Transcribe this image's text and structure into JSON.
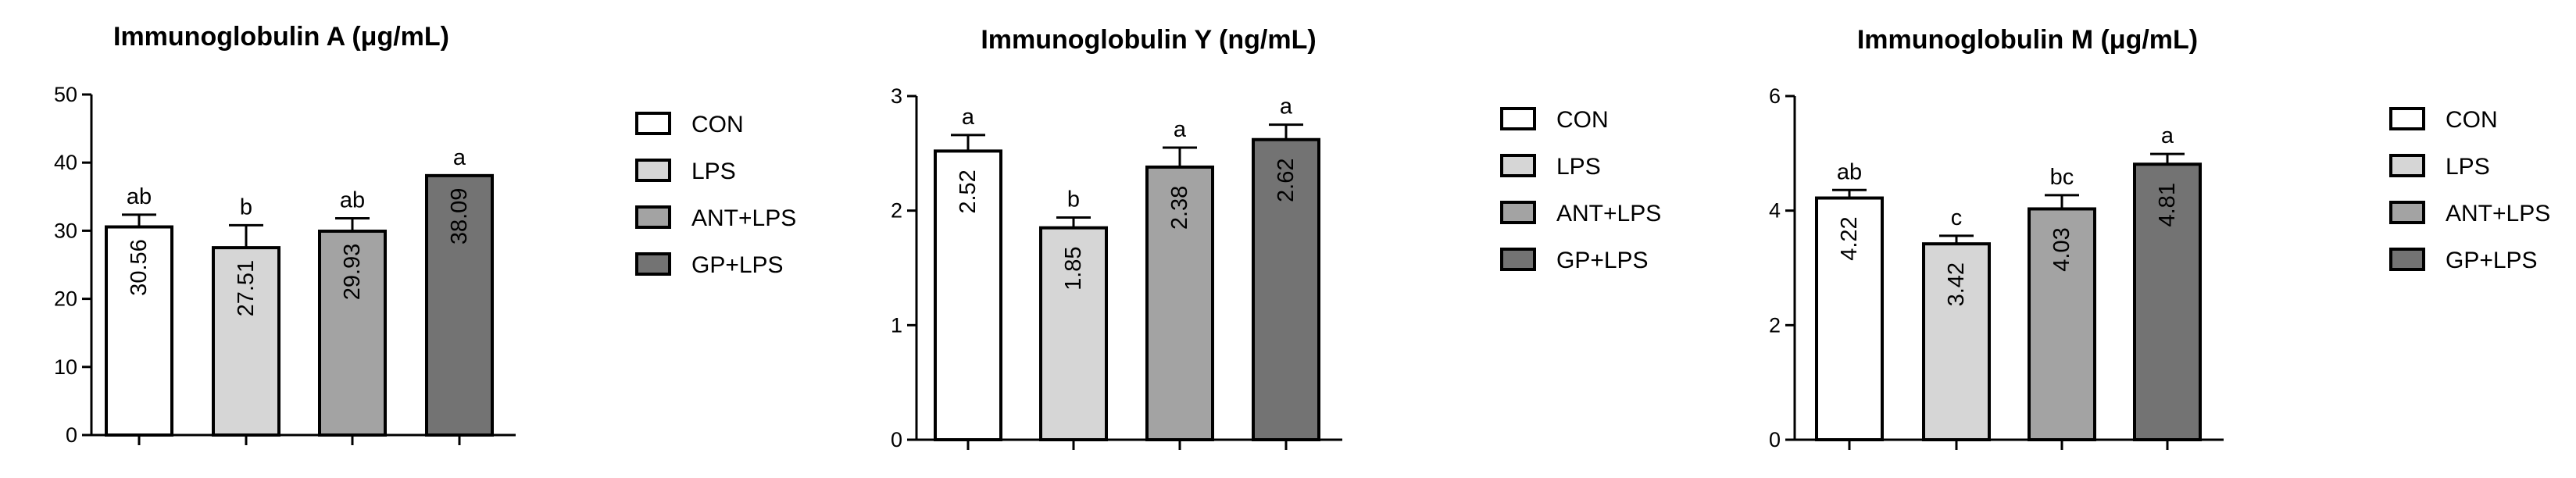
{
  "legend": [
    {
      "label": "CON",
      "color": "#ffffff"
    },
    {
      "label": "LPS",
      "color": "#d6d6d6"
    },
    {
      "label": "ANT+LPS",
      "color": "#a3a3a3"
    },
    {
      "label": "GP+LPS",
      "color": "#737373"
    }
  ],
  "chart_data": [
    {
      "type": "bar",
      "title": "Immunoglobulin A (μg/mL)",
      "categories": [
        "CON",
        "LPS",
        "ANT+LPS",
        "GP+LPS"
      ],
      "values": [
        30.56,
        27.51,
        29.93,
        38.09
      ],
      "value_labels": [
        "30.56",
        "27.51",
        "29.93",
        "38.09"
      ],
      "errors": [
        1.8,
        3.3,
        1.9,
        0.0
      ],
      "significance": [
        "ab",
        "b",
        "ab",
        "a"
      ],
      "ylim": [
        0,
        50
      ],
      "yticks": [
        0,
        10,
        20,
        30,
        40,
        50
      ],
      "ytick_labels": [
        "0",
        "10",
        "20",
        "30",
        "40",
        "50"
      ],
      "xlabel": "",
      "ylabel": "",
      "colors": [
        "#ffffff",
        "#d6d6d6",
        "#a3a3a3",
        "#737373"
      ],
      "legend_position": "right",
      "grid": false
    },
    {
      "type": "bar",
      "title": "Immunoglobulin Y (ng/mL)",
      "categories": [
        "CON",
        "LPS",
        "ANT+LPS",
        "GP+LPS"
      ],
      "values": [
        2.52,
        1.85,
        2.38,
        2.62
      ],
      "value_labels": [
        "2.52",
        "1.85",
        "2.38",
        "2.62"
      ],
      "errors": [
        0.14,
        0.09,
        0.17,
        0.13
      ],
      "significance": [
        "a",
        "b",
        "a",
        "a"
      ],
      "ylim": [
        0,
        3
      ],
      "yticks": [
        0,
        1,
        2,
        3
      ],
      "ytick_labels": [
        "0",
        "1",
        "2",
        "3"
      ],
      "xlabel": "",
      "ylabel": "",
      "colors": [
        "#ffffff",
        "#d6d6d6",
        "#a3a3a3",
        "#737373"
      ],
      "legend_position": "right",
      "grid": false
    },
    {
      "type": "bar",
      "title": "Immunoglobulin M (μg/mL)",
      "categories": [
        "CON",
        "LPS",
        "ANT+LPS",
        "GP+LPS"
      ],
      "values": [
        4.22,
        3.42,
        4.03,
        4.81
      ],
      "value_labels": [
        "4.22",
        "3.42",
        "4.03",
        "4.81"
      ],
      "errors": [
        0.14,
        0.14,
        0.24,
        0.18
      ],
      "significance": [
        "ab",
        "c",
        "bc",
        "a"
      ],
      "ylim": [
        0,
        6
      ],
      "yticks": [
        0,
        2,
        4,
        6
      ],
      "ytick_labels": [
        "0",
        "2",
        "4",
        "6"
      ],
      "xlabel": "",
      "ylabel": "",
      "colors": [
        "#ffffff",
        "#d6d6d6",
        "#a3a3a3",
        "#737373"
      ],
      "legend_position": "right",
      "grid": false
    }
  ]
}
